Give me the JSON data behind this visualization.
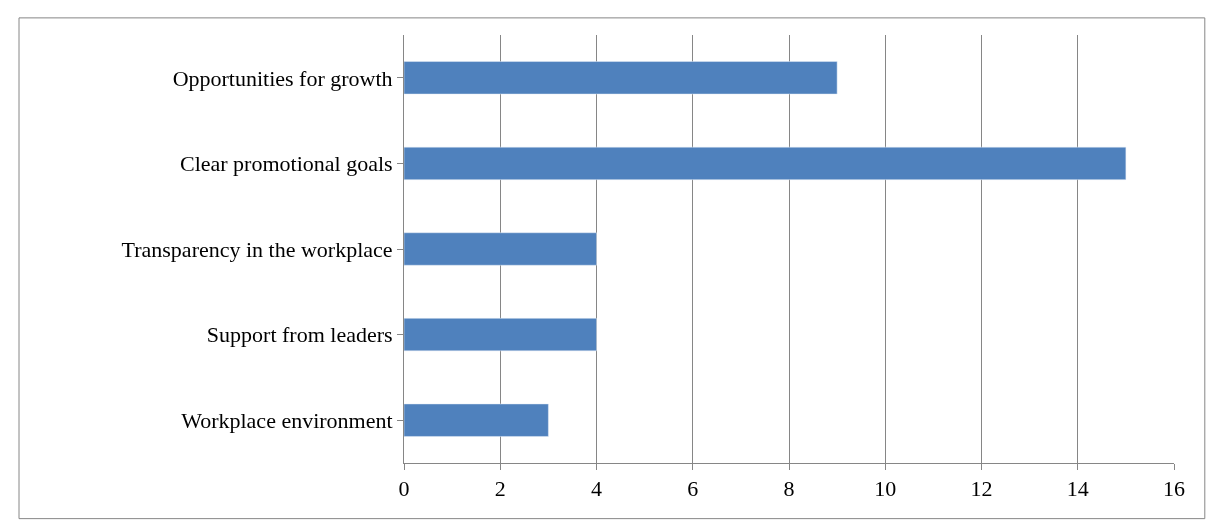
{
  "chart_data": {
    "type": "bar",
    "orientation": "horizontal",
    "categories": [
      "Opportunities for growth",
      "Clear promotional goals",
      "Transparency in the workplace",
      "Support from leaders",
      "Workplace environment"
    ],
    "values": [
      9,
      15,
      4,
      4,
      3
    ],
    "color": "#4f81bd",
    "xlim": [
      0,
      16
    ],
    "xticks": [
      0,
      2,
      4,
      6,
      8,
      10,
      12,
      14,
      16
    ],
    "grid": "x"
  }
}
